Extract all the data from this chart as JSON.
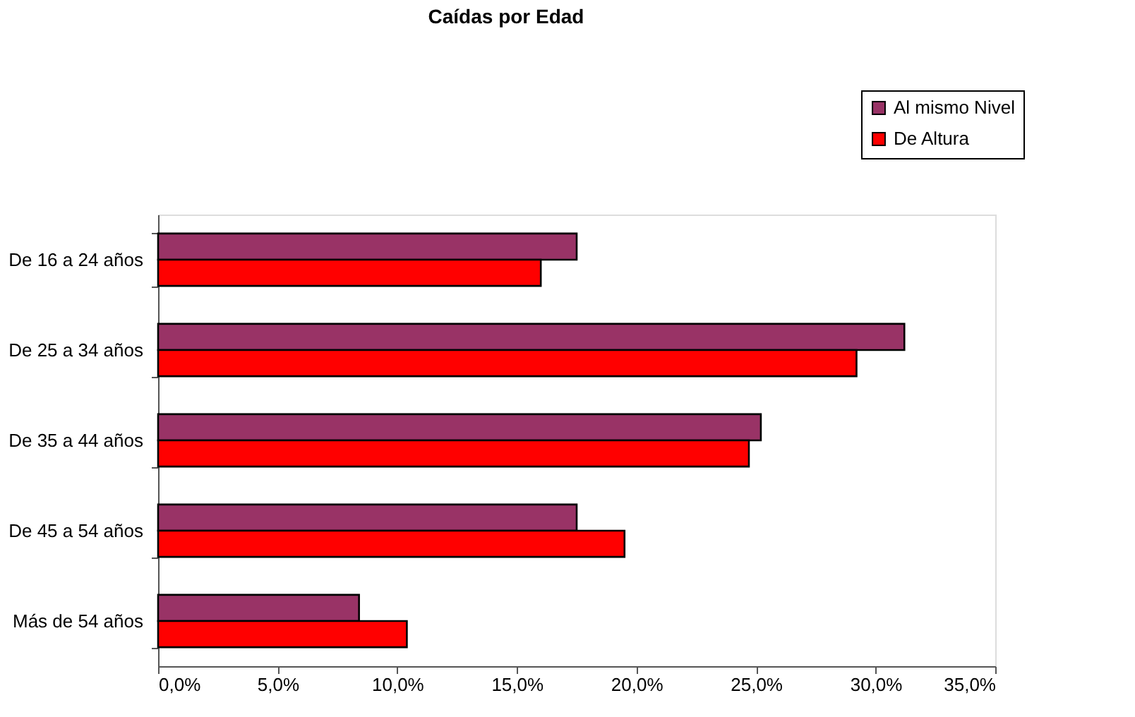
{
  "chart_data": {
    "type": "bar",
    "orientation": "horizontal",
    "title": "Caídas por Edad",
    "categories": [
      "De 16 a 24 años",
      "De 25 a 34 años",
      "De 35 a 44 años",
      "De 45 a 54 años",
      "Más de 54 años"
    ],
    "series": [
      {
        "name": "Al mismo Nivel",
        "color": "#993366",
        "values": [
          17.5,
          31.2,
          25.2,
          17.5,
          8.4
        ]
      },
      {
        "name": "De Altura",
        "color": "#ff0000",
        "values": [
          16.0,
          29.2,
          24.7,
          19.5,
          10.4
        ]
      }
    ],
    "xlim": [
      0,
      35
    ],
    "xticks": [
      {
        "value": 0,
        "label": "0,0%"
      },
      {
        "value": 5,
        "label": "5,0%"
      },
      {
        "value": 10,
        "label": "10,0%"
      },
      {
        "value": 15,
        "label": "15,0%"
      },
      {
        "value": 20,
        "label": "20,0%"
      },
      {
        "value": 25,
        "label": "25,0%"
      },
      {
        "value": 30,
        "label": "30,0%"
      },
      {
        "value": 35,
        "label": "35,0%"
      }
    ],
    "grid": false,
    "legend": "top right"
  }
}
